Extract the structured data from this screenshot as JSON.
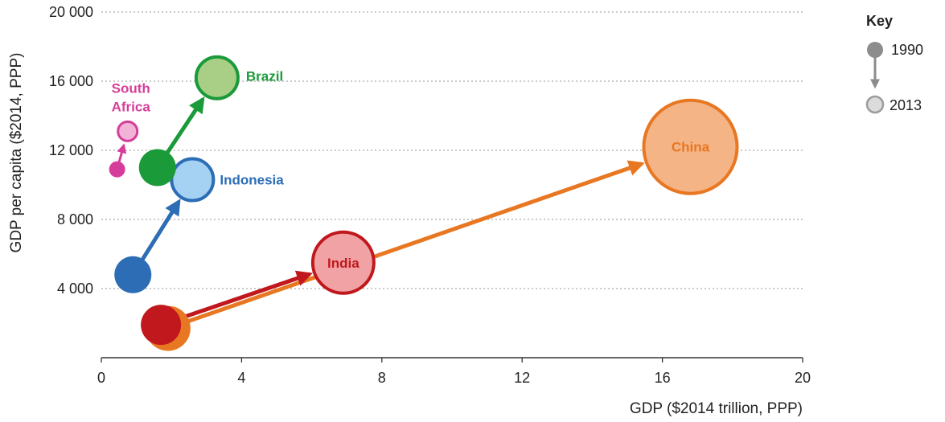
{
  "chart_data": {
    "type": "scatter",
    "title": "",
    "xlabel": "GDP ($2014 trillion, PPP)",
    "ylabel": "GDP per capita ($2014, PPP)",
    "xlim": [
      0,
      20
    ],
    "ylim": [
      0,
      20000
    ],
    "x_ticks": [
      0,
      4,
      8,
      12,
      16,
      20
    ],
    "x_tick_labels": [
      "0",
      "4",
      "8",
      "12",
      "16",
      "20"
    ],
    "y_ticks": [
      4000,
      8000,
      12000,
      16000,
      20000
    ],
    "y_tick_labels": [
      "4 000",
      "8 000",
      "12 000",
      "16 000",
      "20 000"
    ],
    "grid": "horizontal-dotted",
    "series": [
      {
        "name": "China",
        "label": "China",
        "color": "#e87722",
        "fill_2013": "#f5b486",
        "from": {
          "year": 1990,
          "x": 1.9,
          "y": 1700
        },
        "to": {
          "year": 2013,
          "x": 16.8,
          "y": 12200
        },
        "size": "xlarge"
      },
      {
        "name": "India",
        "label": "India",
        "color": "#c0181c",
        "fill_2013": "#f0a2a5",
        "from": {
          "year": 1990,
          "x": 1.7,
          "y": 1900
        },
        "to": {
          "year": 2013,
          "x": 6.9,
          "y": 5500
        },
        "size": "large"
      },
      {
        "name": "Brazil",
        "label": "Brazil",
        "color": "#1b9a3a",
        "fill_2013": "#a9cf87",
        "from": {
          "year": 1990,
          "x": 1.6,
          "y": 11000
        },
        "to": {
          "year": 2013,
          "x": 3.3,
          "y": 16200
        },
        "size": "medium"
      },
      {
        "name": "Indonesia",
        "label": "Indonesia",
        "color": "#2c6db5",
        "fill_2013": "#a5d1f3",
        "from": {
          "year": 1990,
          "x": 0.9,
          "y": 4800
        },
        "to": {
          "year": 2013,
          "x": 2.6,
          "y": 10300
        },
        "size": "medium"
      },
      {
        "name": "South Africa",
        "label_lines": [
          "South",
          "Africa"
        ],
        "color": "#d63d9a",
        "fill_2013": "#f1b4d6",
        "from": {
          "year": 1990,
          "x": 0.45,
          "y": 10900
        },
        "to": {
          "year": 2013,
          "x": 0.75,
          "y": 13100
        },
        "size": "small"
      }
    ],
    "legend": {
      "title": "Key",
      "placement": "top-right",
      "start_label": "1990",
      "end_label": "2013"
    }
  }
}
